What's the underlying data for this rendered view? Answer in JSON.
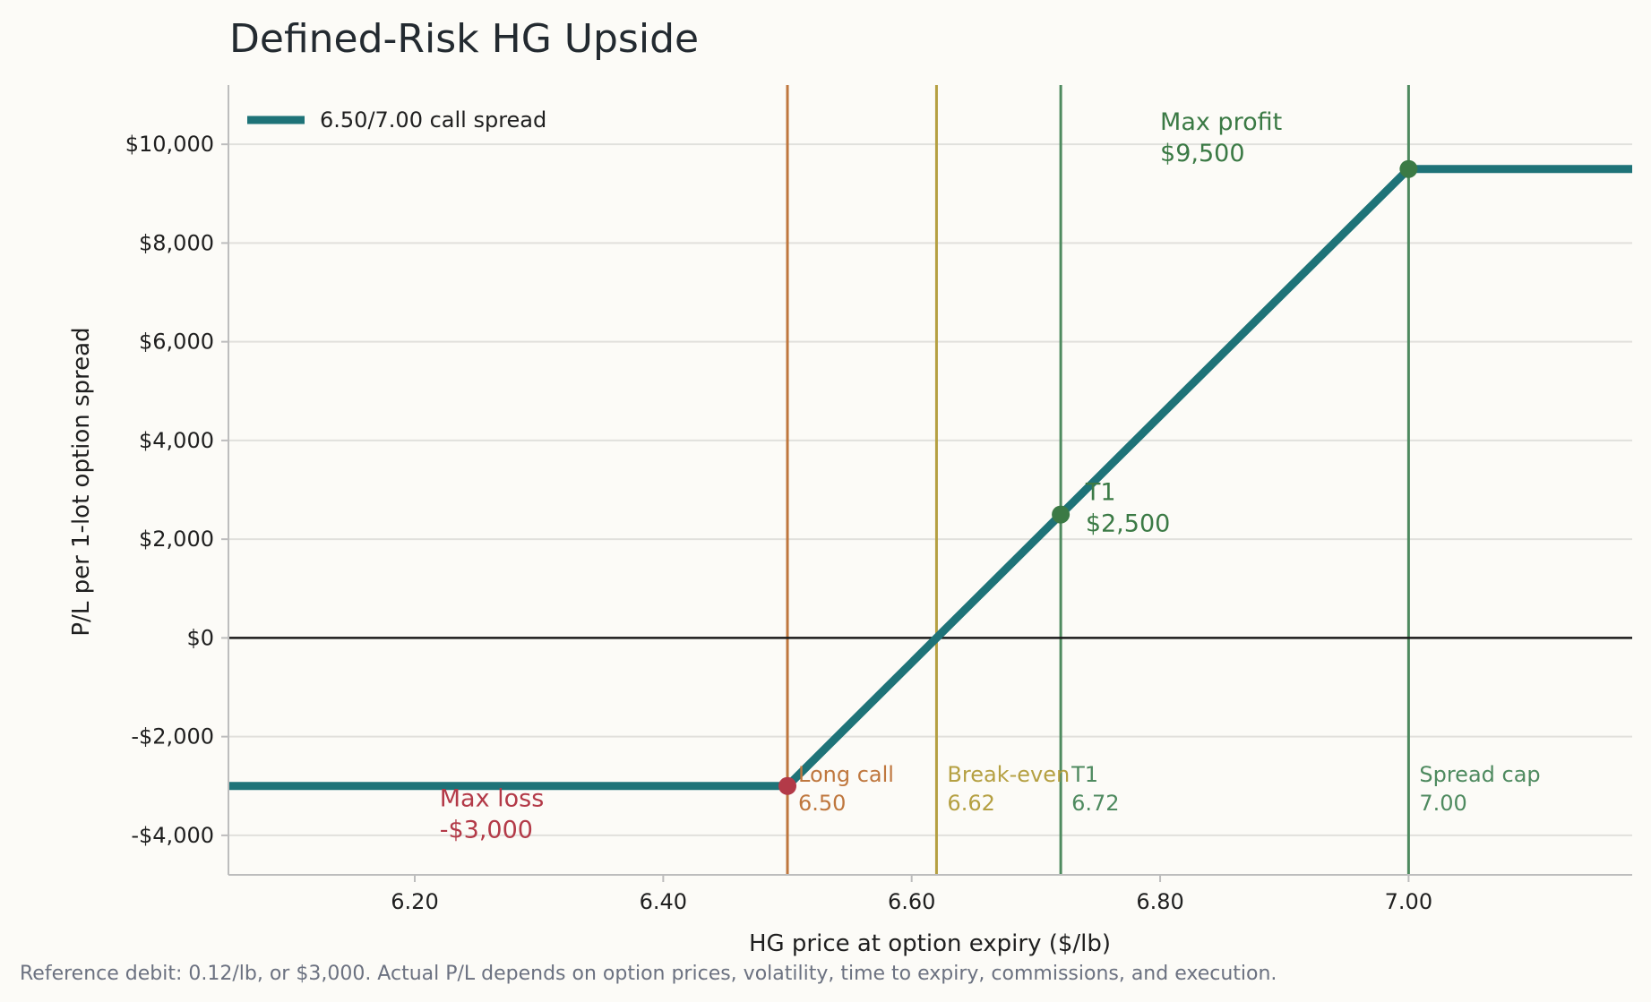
{
  "chart_data": {
    "type": "line",
    "title": "Defined-Risk HG Upside",
    "xlabel": "HG price at option expiry ($/lb)",
    "ylabel": "P/L per 1-lot option spread",
    "xlim": [
      6.05,
      7.18
    ],
    "ylim": [
      -4800,
      11200
    ],
    "x_ticks": [
      6.2,
      6.4,
      6.6,
      6.8,
      7.0
    ],
    "x_tick_labels": [
      "6.20",
      "6.40",
      "6.60",
      "6.80",
      "7.00"
    ],
    "y_ticks": [
      -4000,
      -2000,
      0,
      2000,
      4000,
      6000,
      8000,
      10000
    ],
    "y_tick_labels": [
      "-$4,000",
      "-$2,000",
      "$0",
      "$2,000",
      "$4,000",
      "$6,000",
      "$8,000",
      "$10,000"
    ],
    "grid": "horizontal",
    "legend": "top-left",
    "series": [
      {
        "name": "6.50/7.00 call spread",
        "color": "#1e7378",
        "x": [
          6.05,
          6.5,
          7.0,
          7.18
        ],
        "y": [
          -3000,
          -3000,
          9500,
          9500
        ]
      }
    ],
    "vlines": [
      {
        "x": 6.5,
        "color": "#bf773e",
        "label1": "Long call",
        "label2": "6.50"
      },
      {
        "x": 6.62,
        "color": "#b5a042",
        "label1": "Break-even",
        "label2": "6.62"
      },
      {
        "x": 6.72,
        "color": "#4e8a5f",
        "label1": "T1",
        "label2": "6.72"
      },
      {
        "x": 7.0,
        "color": "#4e8a5f",
        "label1": "Spread cap",
        "label2": "7.00"
      }
    ],
    "points": [
      {
        "x": 6.5,
        "y": -3000,
        "color": "#b33a48"
      },
      {
        "x": 6.72,
        "y": 2500,
        "color": "#3b7a45"
      },
      {
        "x": 7.0,
        "y": 9500,
        "color": "#3b7a45"
      }
    ],
    "annotations": [
      {
        "line1": "Max profit",
        "line2": "$9,500",
        "x": 6.8,
        "y": 10000,
        "color": "#3b7a45"
      },
      {
        "line1": "T1",
        "line2": "$2,500",
        "x": 6.74,
        "y": 2500,
        "color": "#3b7a45"
      },
      {
        "line1": "Max loss",
        "line2": "-$3,000",
        "x": 6.22,
        "y": -3700,
        "color": "#b33a48"
      }
    ],
    "footnote": "Reference debit: 0.12/lb, or $3,000. Actual P/L depends on option prices, volatility, time to expiry, commissions, and execution."
  }
}
